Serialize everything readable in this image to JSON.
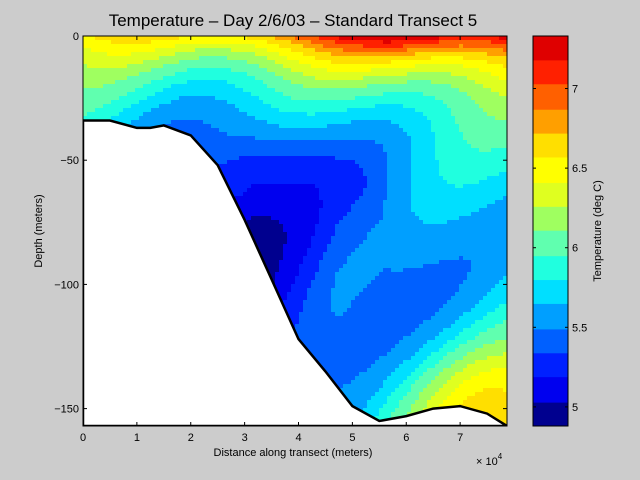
{
  "chart_data": {
    "type": "contourf",
    "title": "Temperature – Day 2/6/03 – Standard Transect 5",
    "xlabel": "Distance along transect (meters)",
    "ylabel": "Depth (meters)",
    "x_exponent_label": "× 10",
    "x_exponent": "4",
    "xlim": [
      0,
      78700
    ],
    "ylim": [
      -157,
      0
    ],
    "x_ticks": [
      0,
      10000,
      20000,
      30000,
      40000,
      50000,
      60000,
      70000
    ],
    "x_tick_labels": [
      "0",
      "1",
      "2",
      "3",
      "4",
      "5",
      "6",
      "7"
    ],
    "y_ticks": [
      0,
      -50,
      -100,
      -150
    ],
    "y_tick_labels": [
      "0",
      "-50",
      "-100",
      "-150"
    ],
    "grid": false,
    "colorbar": {
      "label": "Temperature (deg C)",
      "range": [
        4.88,
        7.33
      ],
      "ticks": [
        5,
        5.5,
        6,
        6.5,
        7
      ],
      "tick_labels": [
        "5",
        "5.5",
        "6",
        "6.5",
        "7"
      ],
      "levels": [
        4.88,
        5.03,
        5.19,
        5.34,
        5.49,
        5.65,
        5.8,
        5.95,
        6.11,
        6.26,
        6.41,
        6.57,
        6.72,
        6.87,
        7.03,
        7.18,
        7.33
      ],
      "colors": [
        "#00008f",
        "#0000ef",
        "#0020ff",
        "#0060ff",
        "#009fff",
        "#00dfff",
        "#20ffdf",
        "#60ffaf",
        "#9fff60",
        "#dfff20",
        "#ffff00",
        "#ffdf00",
        "#ff9f00",
        "#ff6000",
        "#ff2000",
        "#df0000",
        "#bf0000"
      ]
    },
    "bathymetry": {
      "x": [
        0,
        5000,
        10000,
        12500,
        15000,
        20000,
        25000,
        30000,
        35000,
        40000,
        45000,
        50000,
        55000,
        60000,
        65000,
        70000,
        75000,
        78700
      ],
      "depth": [
        -34,
        -34,
        -37,
        -37,
        -36,
        -40,
        -52,
        -74,
        -98,
        -122,
        -135,
        -149,
        -155,
        -153,
        -150,
        -149,
        -152,
        -157
      ]
    },
    "temperature_profile_summary": [
      {
        "depth": 0,
        "temp_at_x0": 6.5,
        "temp_at_x7e4": 7.3
      },
      {
        "depth": -10,
        "temp_at_x0": 6.4,
        "temp_at_x7e4": 7.0
      },
      {
        "depth": -20,
        "temp_at_x0": 6.1,
        "temp_at_x7e4": 6.6
      },
      {
        "depth": -30,
        "temp_at_x0": 5.8,
        "temp_at_x7e4": 6.1
      },
      {
        "depth": -50,
        "temp_at_x0": null,
        "temp_at_x7e4": 5.6
      },
      {
        "depth": -80,
        "temp_at_x0": null,
        "temp_at_x7e4": 5.35
      },
      {
        "depth": -120,
        "temp_at_x0": null,
        "temp_at_x7e4": 5.6
      },
      {
        "depth": -150,
        "temp_at_x0": null,
        "temp_at_x7e4": 6.0
      }
    ]
  }
}
